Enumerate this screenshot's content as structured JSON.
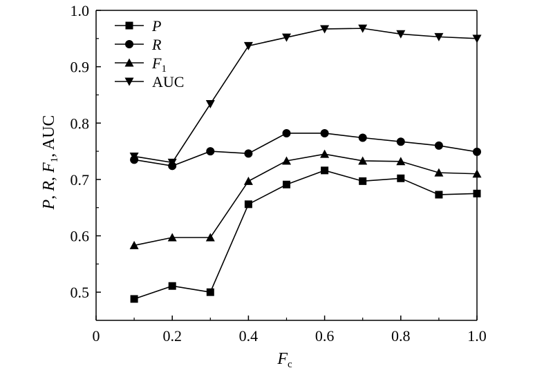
{
  "chart_data": {
    "type": "line",
    "title": "",
    "x": [
      0.1,
      0.2,
      0.3,
      0.4,
      0.5,
      0.6,
      0.7,
      0.8,
      0.9,
      1.0
    ],
    "xlim": [
      0,
      1.0
    ],
    "ylim": [
      0.45,
      1.0
    ],
    "xticks": [
      0,
      0.2,
      0.4,
      0.6,
      0.8,
      1.0
    ],
    "xtick_labels": [
      "0",
      "0.2",
      "0.4",
      "0.6",
      "0.8",
      "1.0"
    ],
    "yticks": [
      0.5,
      0.6,
      0.7,
      0.8,
      0.9,
      1.0
    ],
    "ytick_labels": [
      "0.5",
      "0.6",
      "0.7",
      "0.8",
      "0.9",
      "1.0"
    ],
    "xlabel": {
      "main": "F",
      "sub": "c"
    },
    "ylabel": {
      "p1": "P",
      "s1": ", ",
      "p2": "R",
      "s2": ", ",
      "p3": "F",
      "sub": "1",
      "s3": ", AUC"
    },
    "grid": false,
    "legend_position": "top-left",
    "series": [
      {
        "name": "P",
        "marker": "square",
        "values": [
          0.488,
          0.511,
          0.5,
          0.656,
          0.691,
          0.716,
          0.697,
          0.702,
          0.673,
          0.675
        ]
      },
      {
        "name": "R",
        "marker": "circle",
        "values": [
          0.735,
          0.724,
          0.75,
          0.746,
          0.782,
          0.782,
          0.774,
          0.767,
          0.76,
          0.749
        ]
      },
      {
        "name": "F",
        "name_sub": "1",
        "marker": "triangle-up",
        "values": [
          0.583,
          0.597,
          0.597,
          0.697,
          0.733,
          0.745,
          0.733,
          0.732,
          0.712,
          0.71
        ]
      },
      {
        "name": "AUC",
        "marker": "triangle-down",
        "values": [
          0.741,
          0.73,
          0.834,
          0.937,
          0.952,
          0.967,
          0.968,
          0.958,
          0.953,
          0.95
        ]
      }
    ],
    "color": "#000000"
  }
}
